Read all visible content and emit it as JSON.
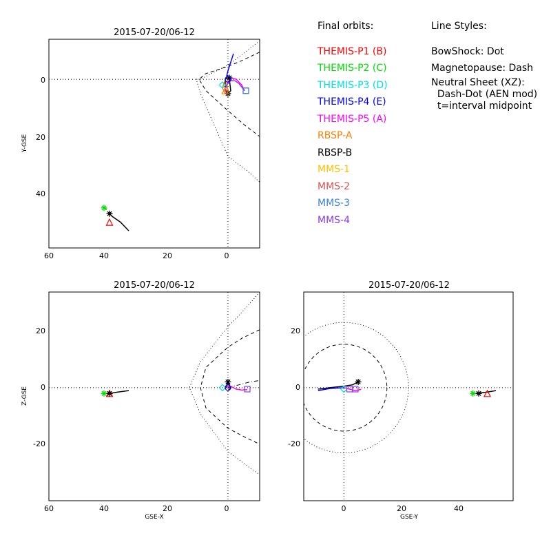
{
  "panels": [
    {
      "id": "xy",
      "title": "2015-07-20/06-12",
      "xlabel": "",
      "ylabel": "Y-GSE",
      "x_ticks": [
        "60",
        "40",
        "20",
        "0"
      ],
      "y_ticks": [
        "0",
        "20",
        "40"
      ]
    },
    {
      "id": "xz",
      "title": "2015-07-20/06-12",
      "xlabel": "GSE-X",
      "ylabel": "Z-GSE",
      "x_ticks": [
        "60",
        "40",
        "20",
        "0"
      ],
      "y_ticks": [
        "20",
        "0",
        "-20"
      ]
    },
    {
      "id": "yz",
      "title": "2015-07-20/06-12",
      "xlabel": "GSE-Y",
      "ylabel": "",
      "x_ticks": [
        "0",
        "20",
        "40"
      ],
      "y_ticks": [
        "20",
        "0",
        "-20"
      ]
    }
  ],
  "legend": {
    "title": "Final orbits:",
    "entries": [
      {
        "label": "THEMIS-P1 (B)",
        "color": "#ff0000"
      },
      {
        "label": "THEMIS-P2 (C)",
        "color": "#00dd00"
      },
      {
        "label": "THEMIS-P3 (D)",
        "color": "#00e0e0"
      },
      {
        "label": "THEMIS-P4 (E)",
        "color": "#0000ff"
      },
      {
        "label": "THEMIS-P5 (A)",
        "color": "#ff00ff"
      },
      {
        "label": "RBSP-A",
        "color": "#ff8000"
      },
      {
        "label": "RBSP-B",
        "color": "#000000"
      },
      {
        "label": "MMS-1",
        "color": "#ffc000"
      },
      {
        "label": "MMS-2",
        "color": "#dd5050"
      },
      {
        "label": "MMS-3",
        "color": "#3c82dc"
      },
      {
        "label": "MMS-4",
        "color": "#8c3ce6"
      }
    ]
  },
  "line_styles": {
    "title": "Line Styles:",
    "lines": [
      "BowShock: Dot",
      "Magnetopause: Dash",
      "Neutral Sheet (XZ):",
      "  Dash-Dot (AEN mod)",
      "  t=interval midpoint"
    ]
  },
  "chart_data": [
    {
      "type": "scatter",
      "title": "2015-07-20/06-12",
      "xlabel": "",
      "ylabel": "Y-GSE",
      "xlim": [
        65,
        -11.5
      ],
      "ylim": [
        -14,
        59
      ],
      "y_axis_inverted": true,
      "reference_lines": [
        {
          "axis": "x",
          "value": 0,
          "style": "dot"
        },
        {
          "axis": "y",
          "value": 0,
          "style": "dot"
        }
      ],
      "boundaries": [
        {
          "name": "BowShock",
          "style": "dot",
          "points": [
            [
              -11.5,
              -13.5
            ],
            [
              -7,
              -10
            ],
            [
              0,
              -5
            ],
            [
              10,
              0
            ],
            [
              11.5,
              0
            ],
            [
              10,
              5
            ],
            [
              0,
              27
            ],
            [
              -7,
              32
            ],
            [
              -11.5,
              36
            ]
          ]
        },
        {
          "name": "Magnetopause",
          "style": "dash",
          "points": [
            [
              -11.5,
              -9.5
            ],
            [
              -5,
              -6.5
            ],
            [
              0,
              -4.5
            ],
            [
              8,
              -2
            ],
            [
              10.5,
              0
            ],
            [
              8,
              4
            ],
            [
              0,
              11
            ],
            [
              -6,
              16
            ],
            [
              -11.5,
              20
            ]
          ]
        }
      ],
      "orbits": [
        {
          "name": "THEMIS-P4 (E)",
          "color": "#0000ff",
          "points": [
            [
              -2,
              -9
            ],
            [
              -1,
              -6
            ],
            [
              0,
              -3
            ],
            [
              0.5,
              -1
            ]
          ]
        },
        {
          "name": "THEMIS-P5 (A)",
          "color": "#ff00ff",
          "points": [
            [
              -6,
              4
            ],
            [
              -5,
              2
            ],
            [
              -3,
              0
            ],
            [
              -1,
              -0.5
            ],
            [
              0.5,
              2
            ],
            [
              1,
              4
            ],
            [
              0,
              5
            ]
          ]
        },
        {
          "name": "RBSP-B",
          "color": "#000000",
          "points": [
            [
              -1,
              -1
            ],
            [
              1,
              0
            ],
            [
              1,
              3
            ],
            [
              0,
              5
            ],
            [
              -1,
              4
            ],
            [
              -0.5,
              0
            ]
          ]
        },
        {
          "name": "RBSP-A",
          "color": "#ff8000",
          "points": [
            [
              1,
              0
            ],
            [
              2,
              3
            ],
            [
              1,
              5
            ],
            [
              0,
              4
            ],
            [
              0.5,
              1
            ]
          ]
        },
        {
          "name": "MMS-4",
          "color": "#8c3ce6",
          "points": [
            [
              -6,
              4
            ],
            [
              -4,
              1.5
            ],
            [
              -2.5,
              0.5
            ],
            [
              -1,
              0.5
            ],
            [
              0.5,
              2
            ],
            [
              1,
              4
            ]
          ]
        },
        {
          "name": "RBSP-B far",
          "color": "#000000",
          "points": [
            [
              36,
              53
            ],
            [
              39,
              50
            ],
            [
              42,
              48
            ],
            [
              43,
              47
            ]
          ]
        },
        {
          "name": "THEMIS-P2 far",
          "color": "#00dd00",
          "points": [
            [
              44,
              45.5
            ],
            [
              45,
              45
            ]
          ]
        }
      ],
      "markers": [
        {
          "name": "THEMIS-P1 (B)",
          "symbol": "triangle",
          "color": "#ff0000",
          "x": 43,
          "y": 50
        },
        {
          "name": "THEMIS-P2 (C)",
          "symbol": "asterisk",
          "color": "#00dd00",
          "x": 45,
          "y": 45
        },
        {
          "name": "RBSP-B",
          "symbol": "asterisk",
          "color": "#000000",
          "x": 43,
          "y": 47
        },
        {
          "name": "RBSP-B",
          "symbol": "asterisk",
          "color": "#000000",
          "x": 0,
          "y": 5
        },
        {
          "name": "RBSP-B",
          "symbol": "asterisk",
          "color": "#000000",
          "x": -0.5,
          "y": -0.5
        },
        {
          "name": "THEMIS-P3 (D)",
          "symbol": "diamond",
          "color": "#00e0e0",
          "x": 2,
          "y": 2
        },
        {
          "name": "THEMIS-P4 (E)",
          "symbol": "circle",
          "color": "#0000ff",
          "x": 0,
          "y": 0
        },
        {
          "name": "RBSP-A",
          "symbol": "triangle",
          "color": "#ff8000",
          "x": 1,
          "y": 4
        },
        {
          "name": "MMS-4",
          "symbol": "square",
          "color": "#8c3ce6",
          "x": -6.5,
          "y": 4
        },
        {
          "name": "MMS-3",
          "symbol": "square",
          "color": "#3c82dc",
          "x": -6.5,
          "y": 4
        }
      ]
    },
    {
      "type": "scatter",
      "title": "2015-07-20/06-12",
      "xlabel": "GSE-X",
      "ylabel": "Z-GSE",
      "xlim": [
        65,
        -11.5
      ],
      "ylim": [
        -39,
        33
      ],
      "reference_lines": [
        {
          "axis": "x",
          "value": 0,
          "style": "dot"
        },
        {
          "axis": "y",
          "value": 0,
          "style": "dot"
        }
      ],
      "boundaries": [
        {
          "name": "BowShock",
          "style": "dot",
          "points": [
            [
              -11.5,
              33
            ],
            [
              -7,
              28
            ],
            [
              0,
              21
            ],
            [
              10,
              9
            ],
            [
              14,
              0
            ],
            [
              10,
              -9
            ],
            [
              0,
              -22
            ],
            [
              -7,
              -27
            ],
            [
              -11.5,
              -30
            ]
          ]
        },
        {
          "name": "Magnetopause",
          "style": "dash",
          "points": [
            [
              -11.5,
              20
            ],
            [
              -5,
              17
            ],
            [
              0,
              14
            ],
            [
              8,
              7
            ],
            [
              10,
              0
            ],
            [
              8,
              -7
            ],
            [
              0,
              -14
            ],
            [
              -6,
              -17
            ],
            [
              -11.5,
              -19.5
            ]
          ]
        },
        {
          "name": "Neutral Sheet",
          "style": "dash-dot",
          "points": [
            [
              0,
              0
            ],
            [
              -4,
              1
            ],
            [
              -8,
              2
            ],
            [
              -11.5,
              2.5
            ]
          ]
        }
      ],
      "orbits": [
        {
          "name": "THEMIS-P5 (A)",
          "color": "#ff00ff",
          "points": [
            [
              1,
              0
            ],
            [
              -1,
              0.5
            ],
            [
              -3,
              -0.5
            ],
            [
              -5,
              -0.8
            ],
            [
              -7,
              -0.7
            ]
          ]
        },
        {
          "name": "RBSP-B",
          "color": "#000000",
          "points": [
            [
              1,
              -0.5
            ],
            [
              0,
              2
            ],
            [
              -1,
              0
            ],
            [
              0,
              -1
            ]
          ]
        },
        {
          "name": "RBSP-B far",
          "color": "#000000",
          "points": [
            [
              36,
              -1
            ],
            [
              40,
              -1.5
            ],
            [
              43,
              -2
            ]
          ]
        }
      ],
      "markers": [
        {
          "name": "THEMIS-P1 (B)",
          "symbol": "triangle",
          "color": "#ff0000",
          "x": 43,
          "y": -2
        },
        {
          "name": "THEMIS-P2 (C)",
          "symbol": "asterisk",
          "color": "#00dd00",
          "x": 45,
          "y": -2
        },
        {
          "name": "RBSP-B",
          "symbol": "asterisk",
          "color": "#000000",
          "x": 43,
          "y": -2
        },
        {
          "name": "RBSP-B",
          "symbol": "asterisk",
          "color": "#000000",
          "x": 0,
          "y": 2
        },
        {
          "name": "THEMIS-P3 (D)",
          "symbol": "diamond",
          "color": "#00e0e0",
          "x": 2,
          "y": 0
        },
        {
          "name": "THEMIS-P4 (E)",
          "symbol": "circle",
          "color": "#0000ff",
          "x": 0,
          "y": 0
        },
        {
          "name": "MMS-4",
          "symbol": "square",
          "color": "#8c3ce6",
          "x": -7,
          "y": -0.5
        }
      ]
    },
    {
      "type": "scatter",
      "title": "2015-07-20/06-12",
      "xlabel": "GSE-Y",
      "ylabel": "",
      "xlim": [
        -14,
        59
      ],
      "ylim": [
        -39,
        33
      ],
      "reference_lines": [
        {
          "axis": "x",
          "value": 0,
          "style": "dot"
        },
        {
          "axis": "y",
          "value": 0,
          "style": "dot"
        }
      ],
      "boundaries": [
        {
          "name": "BowShock",
          "style": "dot",
          "circle": {
            "cx": 0,
            "cy": 0,
            "r": 22.5
          }
        },
        {
          "name": "Magnetopause",
          "style": "dash",
          "circle": {
            "cx": 0,
            "cy": 0,
            "r": 15
          }
        }
      ],
      "orbits": [
        {
          "name": "RBSP-B",
          "color": "#000000",
          "points": [
            [
              -9,
              -0.5
            ],
            [
              -5,
              0
            ],
            [
              0,
              0.5
            ],
            [
              3,
              1
            ],
            [
              5,
              2
            ]
          ]
        },
        {
          "name": "THEMIS-P4 (E)",
          "color": "#0000ff",
          "points": [
            [
              -9,
              -1
            ],
            [
              -5,
              -0.3
            ],
            [
              0,
              0
            ]
          ]
        },
        {
          "name": "THEMIS-P5 (A)",
          "color": "#ff00ff",
          "points": [
            [
              0,
              0
            ],
            [
              2,
              -0.5
            ],
            [
              4,
              -1
            ],
            [
              6,
              -0.6
            ]
          ]
        },
        {
          "name": "RBSP-B far",
          "color": "#000000",
          "points": [
            [
              46,
              -2
            ],
            [
              50,
              -1.5
            ],
            [
              53,
              -1
            ]
          ]
        }
      ],
      "markers": [
        {
          "name": "THEMIS-P2 (C)",
          "symbol": "asterisk",
          "color": "#00dd00",
          "x": 45,
          "y": -2
        },
        {
          "name": "RBSP-B",
          "symbol": "asterisk",
          "color": "#000000",
          "x": 47,
          "y": -2
        },
        {
          "name": "THEMIS-P1 (B)",
          "symbol": "triangle",
          "color": "#ff0000",
          "x": 50,
          "y": -2
        },
        {
          "name": "RBSP-B",
          "symbol": "asterisk",
          "color": "#000000",
          "x": 5,
          "y": 2
        },
        {
          "name": "THEMIS-P3 (D)",
          "symbol": "diamond",
          "color": "#00e0e0",
          "x": 0,
          "y": -0.5
        },
        {
          "name": "MMS-4",
          "symbol": "square",
          "color": "#8c3ce6",
          "x": 2,
          "y": -0.5
        },
        {
          "name": "MMS-4",
          "symbol": "square",
          "color": "#8c3ce6",
          "x": 4,
          "y": -0.5
        }
      ]
    }
  ]
}
